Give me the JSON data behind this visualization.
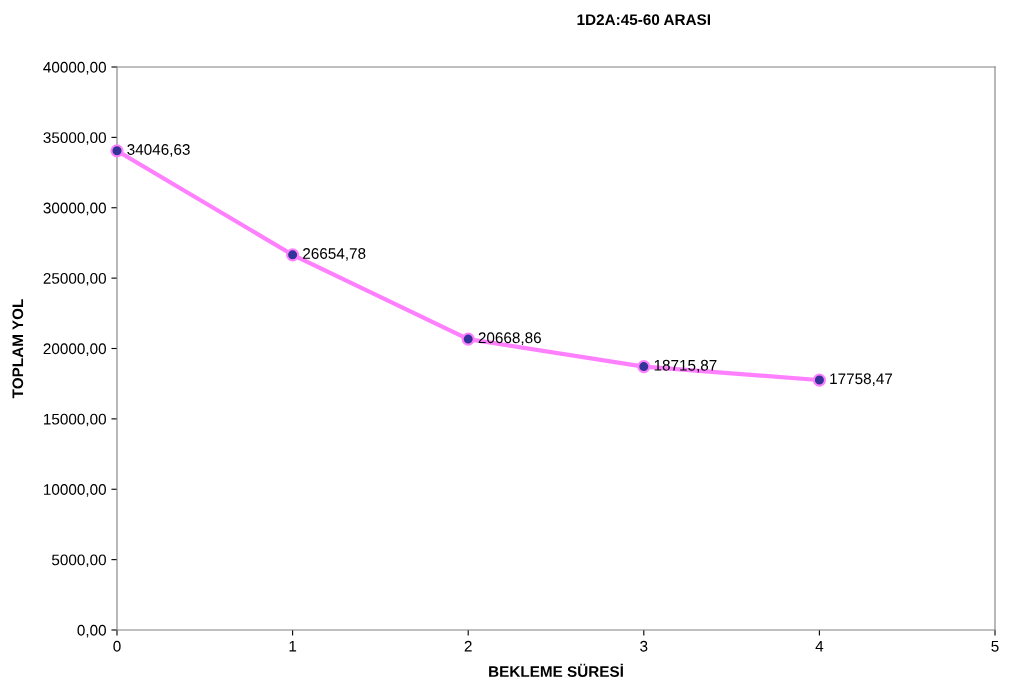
{
  "chart_data": {
    "type": "line",
    "title": "1D2A:45-60 ARASI",
    "xlabel": "BEKLEME SÜRESİ",
    "ylabel": "TOPLAM YOL",
    "x": [
      0,
      1,
      2,
      3,
      4
    ],
    "series": [
      {
        "color": "#ff80ff",
        "values": [
          34046.63,
          26654.78,
          20668.86,
          18715.87,
          17758.47
        ],
        "value_labels": [
          "34046,63",
          "26654,78",
          "20668,86",
          "18715,87",
          "17758,47"
        ]
      }
    ],
    "xlim": [
      0,
      5
    ],
    "xticks": [
      0,
      1,
      2,
      3,
      4,
      5
    ],
    "ylim": [
      0,
      40000
    ],
    "yticks": [
      {
        "value": 0,
        "label": "0,00"
      },
      {
        "value": 5000,
        "label": "5000,00"
      },
      {
        "value": 10000,
        "label": "10000,00"
      },
      {
        "value": 15000,
        "label": "15000,00"
      },
      {
        "value": 20000,
        "label": "20000,00"
      },
      {
        "value": 25000,
        "label": "25000,00"
      },
      {
        "value": 30000,
        "label": "30000,00"
      },
      {
        "value": 35000,
        "label": "35000,00"
      },
      {
        "value": 40000,
        "label": "40000,00"
      }
    ],
    "marker": "circle",
    "line_style": "solid",
    "grid": false,
    "legend": false
  }
}
